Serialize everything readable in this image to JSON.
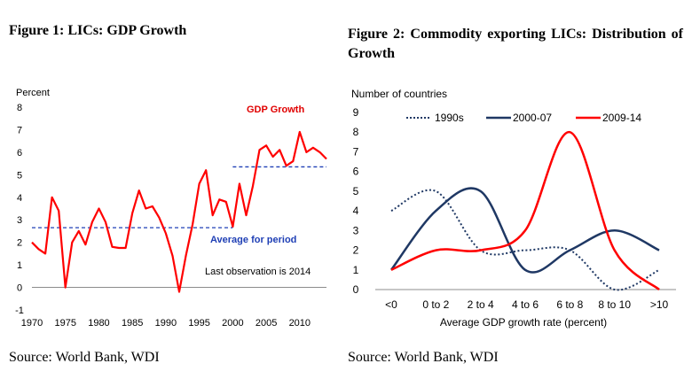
{
  "chart_data": [
    {
      "type": "line",
      "title": "Figure 1: LICs: GDP Growth",
      "ylabel": "Percent",
      "xlabel": "",
      "ylim": [
        -1,
        8
      ],
      "yticks": [
        "8",
        "7",
        "6",
        "5",
        "4",
        "3",
        "2",
        "1",
        "0",
        "-1"
      ],
      "xlim": [
        1970,
        2014
      ],
      "xticks": [
        "1970",
        "1975",
        "1980",
        "1985",
        "1990",
        "1995",
        "2000",
        "2005",
        "2010"
      ],
      "series": [
        {
          "name": "GDP Growth",
          "color": "#ff0000",
          "x": [
            1970,
            1971,
            1972,
            1973,
            1974,
            1975,
            1976,
            1977,
            1978,
            1979,
            1980,
            1981,
            1982,
            1983,
            1984,
            1985,
            1986,
            1987,
            1988,
            1989,
            1990,
            1991,
            1992,
            1993,
            1994,
            1995,
            1996,
            1997,
            1998,
            1999,
            2000,
            2001,
            2002,
            2003,
            2004,
            2005,
            2006,
            2007,
            2008,
            2009,
            2010,
            2011,
            2012,
            2013,
            2014
          ],
          "values": [
            2.0,
            1.7,
            1.5,
            4.0,
            3.4,
            0.0,
            2.0,
            2.5,
            1.9,
            2.9,
            3.5,
            2.9,
            1.8,
            1.75,
            1.75,
            3.3,
            4.3,
            3.5,
            3.6,
            3.1,
            2.4,
            1.4,
            -0.2,
            1.4,
            2.8,
            4.6,
            5.2,
            3.2,
            3.9,
            3.8,
            2.7,
            4.6,
            3.2,
            4.5,
            6.1,
            6.3,
            5.8,
            6.1,
            5.4,
            5.6,
            6.9,
            6.0,
            6.2,
            6.0,
            5.7
          ]
        }
      ],
      "averages": [
        {
          "name": "Average for period",
          "from": 1970,
          "to": 2000,
          "value": 2.65,
          "color": "#1f3fb5"
        },
        {
          "name": "Average for period",
          "from": 2000,
          "to": 2014,
          "value": 5.35,
          "color": "#1f3fb5"
        }
      ],
      "annotations": {
        "series_label": "GDP Growth",
        "average_label": "Average for period",
        "last_obs": "Last observation is 2014"
      },
      "grid": false
    },
    {
      "type": "line",
      "title": "Figure 2: Commodity exporting LICs: Distribution of Growth",
      "ylabel": "Number of countries",
      "xlabel": "Average GDP growth rate (percent)",
      "ylim": [
        0,
        9
      ],
      "yticks": [
        "9",
        "8",
        "7",
        "6",
        "5",
        "4",
        "3",
        "2",
        "1",
        "0"
      ],
      "categories": [
        "<0",
        "0 to 2",
        "2 to 4",
        "4 to 6",
        "6 to 8",
        "8 to 10",
        ">10"
      ],
      "series": [
        {
          "name": "1990s",
          "color": "#1f3864",
          "style": "dotted",
          "values": [
            4,
            5,
            2,
            2,
            2,
            0,
            1
          ]
        },
        {
          "name": "2000-07",
          "color": "#1f3864",
          "style": "solid",
          "values": [
            1,
            4,
            5,
            1,
            2,
            3,
            2
          ]
        },
        {
          "name": "2009-14",
          "color": "#ff0000",
          "style": "solid",
          "values": [
            1,
            2,
            2,
            3,
            8,
            2,
            0
          ]
        }
      ],
      "legend_position": "top",
      "grid": false
    }
  ],
  "sources": {
    "fig1": "Source: World Bank, WDI",
    "fig2": "Source: World Bank, WDI"
  }
}
